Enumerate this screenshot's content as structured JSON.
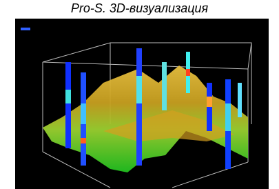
{
  "title": "Pro-S. 3D-визуализация"
}
